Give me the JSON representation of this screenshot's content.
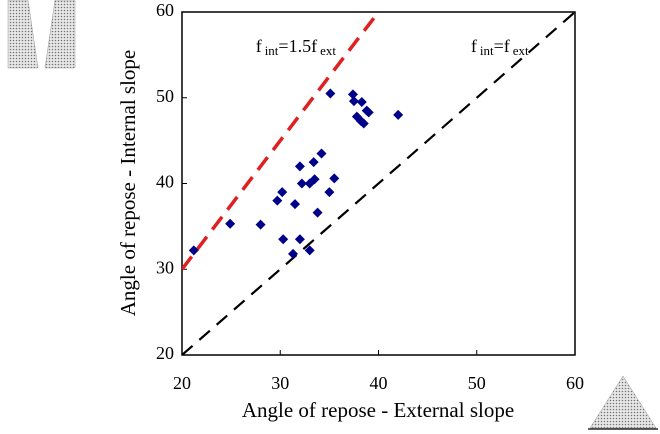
{
  "chart_data": {
    "type": "scatter",
    "x_label": "Angle of repose - External slope",
    "y_label": "Angle of repose - Internal slope",
    "xlim": [
      20,
      60
    ],
    "ylim": [
      20,
      60
    ],
    "xticks": [
      20,
      30,
      40,
      50,
      60
    ],
    "yticks": [
      20,
      30,
      40,
      50,
      60
    ],
    "grid": false,
    "series": [
      {
        "color": "#00008b",
        "x": [
          21.2,
          24.9,
          28.0,
          30.3,
          32.0,
          29.7,
          30.2,
          31.5,
          32.0,
          32.2,
          33.0,
          33.5,
          33.4,
          34.2,
          33.8,
          35.0,
          35.5,
          33.0,
          31.3,
          35.1,
          37.4,
          37.5,
          38.3,
          38.8,
          37.8,
          38.2,
          38.5,
          39.0,
          42.0
        ],
        "y": [
          32.2,
          35.3,
          35.2,
          33.5,
          33.5,
          38.0,
          39.0,
          37.6,
          42.0,
          40.0,
          40.0,
          40.5,
          42.5,
          43.5,
          36.6,
          39.0,
          40.6,
          32.2,
          31.8,
          50.5,
          50.4,
          49.6,
          49.5,
          48.5,
          47.8,
          47.3,
          47.0,
          48.3,
          48.0
        ]
      }
    ],
    "lines": [
      {
        "color": "#e02020",
        "x": [
          20,
          40
        ],
        "y": [
          30,
          60
        ]
      },
      {
        "color": "#000000",
        "x": [
          20,
          60
        ],
        "y": [
          20,
          60
        ]
      }
    ],
    "annotations": [
      {
        "x": 27.5,
        "y": 55.8,
        "parts": [
          {
            "text": "f",
            "sub": false
          },
          {
            "text": "int",
            "sub": true
          },
          {
            "text": "=1.5f",
            "sub": false
          },
          {
            "text": "ext",
            "sub": true
          }
        ]
      },
      {
        "x": 49.4,
        "y": 55.8,
        "parts": [
          {
            "text": "f",
            "sub": false
          },
          {
            "text": "int",
            "sub": true
          },
          {
            "text": "=f",
            "sub": false
          },
          {
            "text": "ext",
            "sub": true
          }
        ]
      }
    ]
  }
}
